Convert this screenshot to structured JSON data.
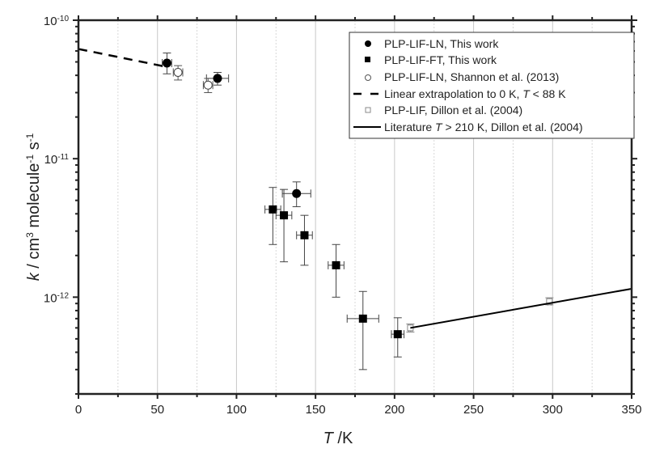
{
  "chart_data": {
    "type": "scatter",
    "title": "",
    "xlabel": "T /K",
    "ylabel": "k / cm3 molecule-1 s-1",
    "xlim": [
      0,
      350
    ],
    "ylim": [
      2e-13,
      1e-10
    ],
    "yscale": "log",
    "x_ticks": [
      0,
      50,
      100,
      150,
      200,
      250,
      300,
      350
    ],
    "y_tick_labels": [
      "10-10",
      "10-11",
      "10-12"
    ],
    "grid": {
      "major_x": true,
      "minor_x_dotted": true,
      "y": false
    },
    "legend_position": "upper right",
    "series": [
      {
        "name": "PLP-LIF-LN, This work",
        "marker": "filled-circle",
        "points": [
          {
            "x": 56,
            "y": 4.9e-11,
            "xerr": 3,
            "yerr": [
              4.1e-11,
              5.8e-11
            ]
          },
          {
            "x": 88,
            "y": 3.8e-11,
            "xerr": 7,
            "yerr": [
              3.4e-11,
              4.2e-11
            ]
          },
          {
            "x": 138,
            "y": 5.6e-12,
            "xerr": 9,
            "yerr": [
              4.5e-12,
              6.8e-12
            ]
          }
        ]
      },
      {
        "name": "PLP-LIF-FT, This work",
        "marker": "filled-square",
        "points": [
          {
            "x": 123,
            "y": 4.3e-12,
            "xerr": 5,
            "yerr": [
              2.4e-12,
              6.2e-12
            ]
          },
          {
            "x": 130,
            "y": 3.9e-12,
            "xerr": 5,
            "yerr": [
              1.8e-12,
              6e-12
            ]
          },
          {
            "x": 143,
            "y": 2.8e-12,
            "xerr": 5,
            "yerr": [
              1.7e-12,
              3.9e-12
            ]
          },
          {
            "x": 163,
            "y": 1.7e-12,
            "xerr": 5,
            "yerr": [
              1e-12,
              2.4e-12
            ]
          },
          {
            "x": 180,
            "y": 7e-13,
            "xerr": 10,
            "yerr": [
              3e-13,
              1.1e-12
            ]
          },
          {
            "x": 202,
            "y": 5.4e-13,
            "xerr": 4,
            "yerr": [
              3.7e-13,
              7.1e-13
            ]
          }
        ]
      },
      {
        "name": "PLP-LIF-LN, Shannon et al. (2013)",
        "marker": "open-circle",
        "points": [
          {
            "x": 63,
            "y": 4.2e-11,
            "xerr": 3,
            "yerr": [
              3.7e-11,
              4.7e-11
            ]
          },
          {
            "x": 82,
            "y": 3.4e-11,
            "xerr": 3,
            "yerr": [
              3e-11,
              3.8e-11
            ]
          }
        ]
      },
      {
        "name": "Linear extrapolation to 0 K, T < 88 K",
        "style": "dashed-line",
        "points": [
          {
            "x": 0,
            "y": 6.2e-11
          },
          {
            "x": 56,
            "y": 4.6e-11
          }
        ]
      },
      {
        "name": "PLP-LIF, Dillon et al. (2004)",
        "marker": "open-square",
        "points": [
          {
            "x": 210,
            "y": 6e-13,
            "xerr": 1,
            "yerr": [
              5.6e-13,
              6.4e-13
            ]
          },
          {
            "x": 298,
            "y": 9.3e-13,
            "xerr": 1,
            "yerr": [
              8.8e-13,
              9.9e-13
            ]
          }
        ]
      },
      {
        "name": "Literature T > 210 K, Dillon et al. (2004)",
        "style": "solid-line",
        "points": [
          {
            "x": 210,
            "y": 6e-13
          },
          {
            "x": 350,
            "y": 1.15e-12
          }
        ]
      }
    ]
  },
  "axes": {
    "x_tick_labels": [
      "0",
      "50",
      "100",
      "150",
      "200",
      "250",
      "300",
      "350"
    ],
    "y_tick_base": "10",
    "y_tick_exps": [
      "-10",
      "-11",
      "-12"
    ],
    "xlabel_var": "T",
    "xlabel_unit": " /K",
    "ylabel_var": "k",
    "ylabel_parts": [
      " / cm",
      "3",
      " molecule",
      "-1",
      " s",
      "-1"
    ]
  },
  "legend": {
    "entries": [
      {
        "pre": "PLP-LIF-LN, This work",
        "italic": "",
        "post": ""
      },
      {
        "pre": "PLP-LIF-FT, This work",
        "italic": "",
        "post": ""
      },
      {
        "pre": "PLP-LIF-LN, Shannon et al. (2013)",
        "italic": "",
        "post": ""
      },
      {
        "pre": "Linear extrapolation to 0 K, ",
        "italic": "T",
        "post": " < 88 K"
      },
      {
        "pre": "PLP-LIF, Dillon et al. (2004)",
        "italic": "",
        "post": ""
      },
      {
        "pre": "Literature ",
        "italic": "T",
        "post": " > 210 K, Dillon et al. (2004)"
      }
    ]
  }
}
